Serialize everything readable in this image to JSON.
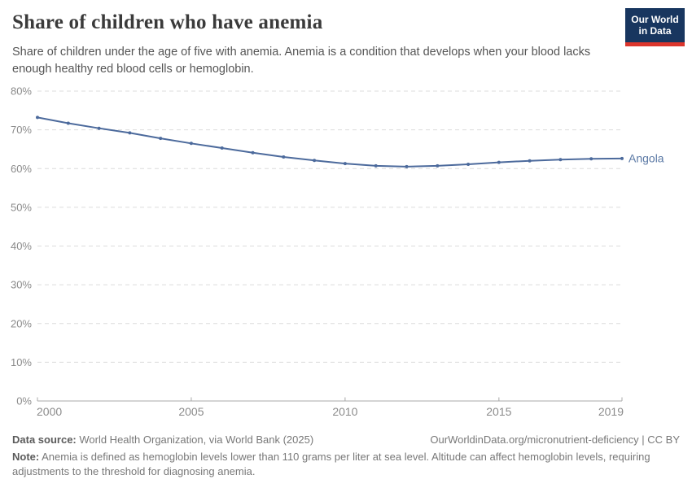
{
  "header": {
    "title": "Share of children who have anemia",
    "subtitle": "Share of children under the age of five with anemia. Anemia is a condition that develops when your blood lacks enough healthy red blood cells or hemoglobin.",
    "logo": {
      "line1": "Our World",
      "line2": "in Data",
      "bg_color": "#18365f",
      "accent_color": "#dc352c"
    }
  },
  "chart_data": {
    "type": "line",
    "title": "Share of children who have anemia",
    "x": [
      2000,
      2001,
      2002,
      2003,
      2004,
      2005,
      2006,
      2007,
      2008,
      2009,
      2010,
      2011,
      2012,
      2013,
      2014,
      2015,
      2016,
      2017,
      2018,
      2019
    ],
    "series": [
      {
        "name": "Angola",
        "color": "#4c6a9c",
        "values": [
          73.2,
          71.7,
          70.4,
          69.2,
          67.8,
          66.5,
          65.3,
          64.1,
          63.0,
          62.1,
          61.3,
          60.7,
          60.5,
          60.7,
          61.1,
          61.6,
          62.0,
          62.3,
          62.5,
          62.6
        ]
      }
    ],
    "xlabel": "",
    "ylabel": "",
    "xlim": [
      2000,
      2019
    ],
    "ylim": [
      0,
      80
    ],
    "x_ticks": [
      2000,
      2005,
      2010,
      2015,
      2019
    ],
    "y_ticks": [
      0,
      10,
      20,
      30,
      40,
      50,
      60,
      70,
      80
    ],
    "y_tick_suffix": "%",
    "grid": "horizontal-dashed",
    "legend_position": "end-of-line-label",
    "colors": {
      "grid": "#dcdcdc",
      "axis": "#a8a8a8",
      "tick_text": "#8b8b8b",
      "line": "#4c6a9c",
      "entity_label": "#5b79a5"
    }
  },
  "footer": {
    "datasource_label": "Data source:",
    "datasource_value": " World Health Organization, via World Bank (2025)",
    "link": "OurWorldinData.org/micronutrient-deficiency | CC BY",
    "note_label": "Note:",
    "note_value": " Anemia is defined as hemoglobin levels lower than 110 grams per liter at sea level. Altitude can affect hemoglobin levels, requiring adjustments to the threshold for diagnosing anemia."
  }
}
